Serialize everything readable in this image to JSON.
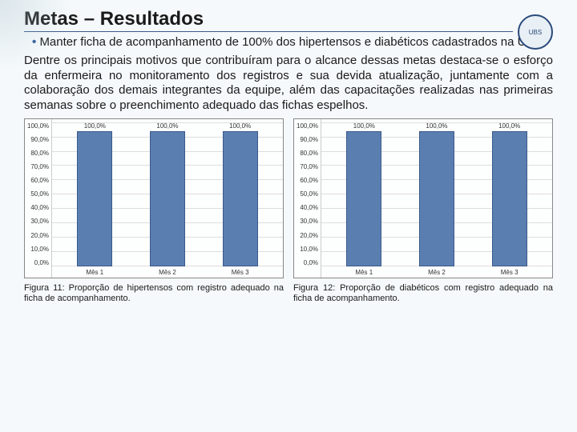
{
  "title": "Metas – Resultados",
  "bullet": "Manter ficha de acompanhamento de 100% dos hipertensos e diabéticos cadastrados na UBS.",
  "body": "Dentre os principais motivos que contribuíram para o alcance dessas metas destaca-se o esforço da enfermeira no monitoramento dos registros e sua devida atualização, juntamente com a colaboração dos demais integrantes da equipe, além das capacitações realizadas nas primeiras semanas sobre o preenchimento adequado das fichas espelhos.",
  "logo_text": "UBS",
  "chart_left": {
    "type": "bar",
    "categories": [
      "Mês 1",
      "Mês 2",
      "Mês 3"
    ],
    "values": [
      100,
      100,
      100
    ],
    "bar_labels": [
      "100,0%",
      "100,0%",
      "100,0%"
    ],
    "bar_color": "#5a7eb0",
    "bar_border": "#3a5a8a",
    "background": "#fdfefe",
    "grid_color": "#dddddd",
    "ylim": [
      0,
      100
    ],
    "y_ticks": [
      "100,0%",
      "90,0%",
      "80,0%",
      "70,0%",
      "60,0%",
      "50,0%",
      "40,0%",
      "30,0%",
      "20,0%",
      "10,0%",
      "0,0%"
    ],
    "caption": "Figura 11: Proporção de hipertensos com registro adequado na ficha de acompanhamento."
  },
  "chart_right": {
    "type": "bar",
    "categories": [
      "Mês 1",
      "Mês 2",
      "Mês 3"
    ],
    "values": [
      100,
      100,
      100
    ],
    "bar_labels": [
      "100,0%",
      "100,0%",
      "100,0%"
    ],
    "bar_color": "#5a7eb0",
    "bar_border": "#3a5a8a",
    "background": "#fdfefe",
    "grid_color": "#dddddd",
    "ylim": [
      0,
      100
    ],
    "y_ticks": [
      "100,0%",
      "90,0%",
      "80,0%",
      "70,0%",
      "60,0%",
      "50,0%",
      "40,0%",
      "30,0%",
      "20,0%",
      "10,0%",
      "0,0%"
    ],
    "caption": "Figura 12: Proporção de diabéticos com registro adequado na ficha de acompanhamento."
  }
}
